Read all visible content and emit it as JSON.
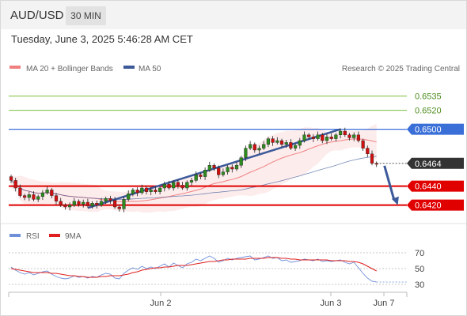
{
  "header": {
    "symbol": "AUD/USD",
    "timeframe": "30 MIN",
    "datetime": "Tuesday, June 3, 2025 5:46:28 AM CET"
  },
  "legend": {
    "ma20_label": "MA 20 + Bollinger Bands",
    "ma50_label": "MA 50",
    "credit": "Research © 2025 Trading Central"
  },
  "rsi_legend": {
    "rsi_label": "RSI",
    "ma_label": "9MA"
  },
  "colors": {
    "ma20": "#f08080",
    "ma50": "#3c5a9a",
    "rsi": "#6f8fd8",
    "rsi_ma": "#e02020",
    "resistance": "#7cbf3c",
    "pivot": "#3a6fd8",
    "support": "#e00000",
    "bull": "#2e8b1e",
    "bear": "#d01010",
    "current": "#333333"
  },
  "chart_data": [
    {
      "type": "candlestick",
      "ylim": [
        0.6403,
        0.6553
      ],
      "x_ticks": [
        "Jun 2",
        "Jun 3",
        "Jun 7"
      ],
      "levels": [
        {
          "value": 0.6535,
          "label": "0.6535",
          "kind": "resistance"
        },
        {
          "value": 0.652,
          "label": "0.6520",
          "kind": "resistance"
        },
        {
          "value": 0.65,
          "label": "0.6500",
          "kind": "pivot"
        },
        {
          "value": 0.6464,
          "label": "0.6464",
          "kind": "current"
        },
        {
          "value": 0.644,
          "label": "0.6440",
          "kind": "support"
        },
        {
          "value": 0.642,
          "label": "0.6420",
          "kind": "support"
        }
      ],
      "series": [
        {
          "name": "MA 20 + Bollinger Bands"
        },
        {
          "name": "MA 50"
        }
      ],
      "close": [
        0.6446,
        0.6438,
        0.643,
        0.6428,
        0.6431,
        0.6426,
        0.6429,
        0.6433,
        0.6436,
        0.643,
        0.6424,
        0.642,
        0.6418,
        0.642,
        0.6424,
        0.6421,
        0.6423,
        0.6419,
        0.6422,
        0.642,
        0.6424,
        0.6427,
        0.6425,
        0.6418,
        0.6416,
        0.6426,
        0.6432,
        0.6436,
        0.6433,
        0.6438,
        0.6434,
        0.6436,
        0.6434,
        0.6438,
        0.6442,
        0.6438,
        0.6444,
        0.6441,
        0.6438,
        0.6444,
        0.6446,
        0.6452,
        0.645,
        0.6457,
        0.6462,
        0.6459,
        0.6452,
        0.6455,
        0.646,
        0.6458,
        0.6462,
        0.647,
        0.648,
        0.6484,
        0.6478,
        0.648,
        0.6484,
        0.649,
        0.6486,
        0.6488,
        0.6484,
        0.6486,
        0.648,
        0.6483,
        0.6488,
        0.6494,
        0.6492,
        0.649,
        0.6494,
        0.6488,
        0.6492,
        0.649,
        0.6494,
        0.6498,
        0.6494,
        0.6491,
        0.6494,
        0.6488,
        0.648,
        0.6474,
        0.6464,
        0.6463
      ],
      "trendline": [
        [
          17,
          0.6417
        ],
        [
          73,
          0.65
        ]
      ],
      "forecast": [
        [
          81,
          0.6464
        ],
        [
          85,
          0.642
        ]
      ]
    },
    {
      "type": "line",
      "title": "RSI",
      "ylim": [
        27,
        75
      ],
      "y_ticks": [
        70,
        50,
        30
      ],
      "series": [
        {
          "name": "RSI",
          "values": [
            52,
            48,
            45,
            43,
            45,
            42,
            44,
            46,
            47,
            43,
            40,
            38,
            37,
            38,
            41,
            39,
            40,
            38,
            40,
            39,
            42,
            44,
            43,
            38,
            37,
            44,
            48,
            51,
            49,
            53,
            50,
            52,
            50,
            53,
            56,
            52,
            57,
            54,
            51,
            56,
            58,
            62,
            60,
            63,
            66,
            63,
            58,
            60,
            63,
            61,
            63,
            64,
            65,
            66,
            61,
            62,
            64,
            66,
            63,
            64,
            60,
            61,
            58,
            59,
            60,
            62,
            61,
            60,
            62,
            59,
            60,
            59,
            60,
            61,
            58,
            56,
            58,
            51,
            44,
            38,
            34,
            33
          ]
        },
        {
          "name": "9MA",
          "values": [
            50,
            49,
            48,
            47,
            46,
            45,
            45,
            45,
            45,
            44,
            44,
            43,
            42,
            41,
            41,
            40,
            40,
            39,
            39,
            39,
            40,
            40,
            41,
            41,
            41,
            42,
            43,
            45,
            46,
            48,
            49,
            50,
            51,
            51,
            52,
            52,
            53,
            54,
            54,
            54,
            55,
            56,
            57,
            58,
            59,
            59,
            60,
            61,
            61,
            62,
            62,
            62,
            62,
            63,
            63,
            63,
            63,
            64,
            64,
            64,
            63,
            63,
            62,
            62,
            61,
            61,
            61,
            61,
            61,
            61,
            61,
            60,
            60,
            60,
            60,
            59,
            59,
            58,
            56,
            53,
            50,
            47
          ]
        }
      ]
    }
  ]
}
